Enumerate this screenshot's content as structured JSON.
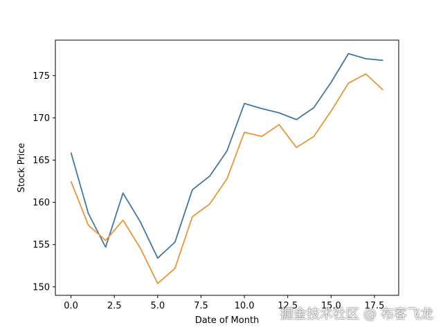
{
  "chart_data": {
    "type": "line",
    "title": "",
    "xlabel": "Date of Month",
    "ylabel": "Stock Price",
    "xlim": [
      -0.9,
      18.9
    ],
    "ylim": [
      149.0,
      179.2
    ],
    "x_ticks": [
      0.0,
      2.5,
      5.0,
      7.5,
      10.0,
      12.5,
      15.0,
      17.5
    ],
    "x_tick_labels": [
      "0.0",
      "2.5",
      "5.0",
      "7.5",
      "10.0",
      "12.5",
      "15.0",
      "17.5"
    ],
    "y_ticks": [
      150,
      155,
      160,
      165,
      170,
      175
    ],
    "y_tick_labels": [
      "150",
      "155",
      "160",
      "165",
      "170",
      "175"
    ],
    "grid": false,
    "legend": "none",
    "x": [
      0,
      1,
      2,
      3,
      4,
      5,
      6,
      7,
      8,
      9,
      10,
      11,
      12,
      13,
      14,
      15,
      16,
      17,
      18
    ],
    "series": [
      {
        "color": "#44759b",
        "values": [
          165.9,
          158.7,
          154.7,
          161.1,
          157.7,
          153.4,
          155.3,
          161.5,
          163.1,
          166.1,
          171.7,
          171.1,
          170.6,
          169.8,
          171.2,
          174.2,
          177.6,
          177.0,
          176.8
        ]
      },
      {
        "color": "#e8943a",
        "values": [
          162.5,
          157.3,
          155.5,
          157.9,
          154.6,
          150.4,
          152.2,
          158.3,
          159.8,
          162.8,
          168.3,
          167.8,
          169.2,
          166.5,
          167.8,
          170.8,
          174.1,
          175.2,
          173.3
        ]
      }
    ]
  },
  "watermark": "掘金技术社区 @ 布客飞龙"
}
